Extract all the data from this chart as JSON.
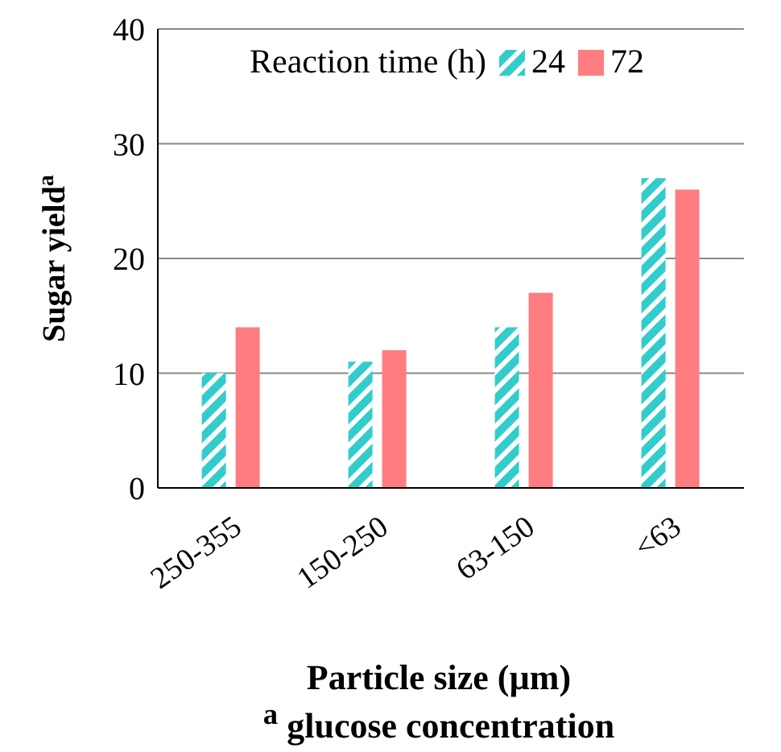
{
  "chart_data": {
    "type": "bar",
    "xlabel": "Particle size (µm)",
    "ylabel": "Sugar yield$^{a}$",
    "legend_title": "Reaction time (h)",
    "categories": [
      "250-355",
      "150-250",
      "63-150",
      "<63"
    ],
    "series": [
      {
        "name": "24",
        "color": "#33cccc",
        "values": [
          10,
          11,
          14,
          27
        ]
      },
      {
        "name": "72",
        "color": "#ff7c80",
        "values": [
          14,
          12,
          17,
          26
        ]
      }
    ],
    "ylim": [
      0,
      40
    ],
    "yticks": [
      0,
      10,
      20,
      30,
      40
    ],
    "grid": "y",
    "legend": "top",
    "annotations": [
      "$^{a}$ glucose concentration"
    ]
  }
}
